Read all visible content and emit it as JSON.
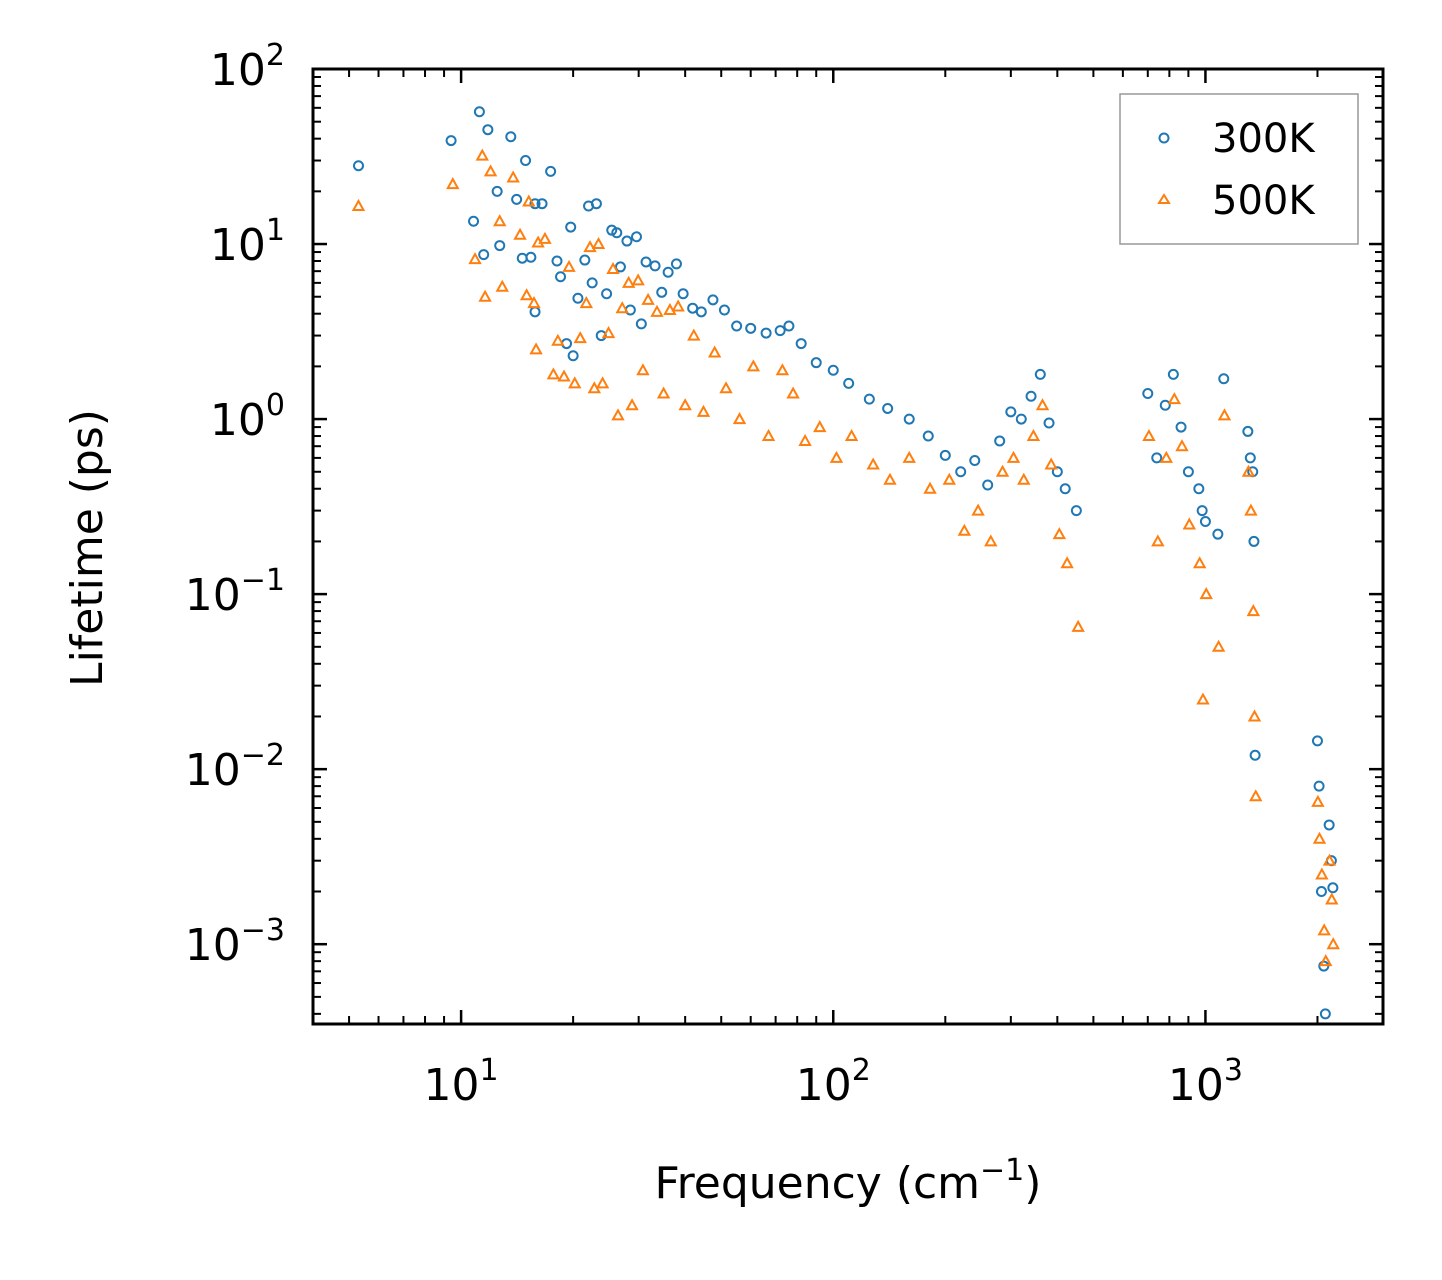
{
  "chart_data": {
    "type": "scatter",
    "title": "",
    "xlabel": "Frequency (cm",
    "xlabel_sup": "−1",
    "xlabel_suffix": ")",
    "ylabel": "Lifetime (ps)",
    "xscale": "log",
    "yscale": "log",
    "xlim": [
      4,
      3000
    ],
    "ylim": [
      0.00035,
      100
    ],
    "x_ticks": [
      {
        "value": 10,
        "base": "10",
        "exp": "1"
      },
      {
        "value": 100,
        "base": "10",
        "exp": "2"
      },
      {
        "value": 1000,
        "base": "10",
        "exp": "3"
      }
    ],
    "y_ticks": [
      {
        "value": 100,
        "base": "10",
        "exp": "2"
      },
      {
        "value": 10,
        "base": "10",
        "exp": "1"
      },
      {
        "value": 1,
        "base": "10",
        "exp": "0"
      },
      {
        "value": 0.1,
        "base": "10",
        "exp": "−1"
      },
      {
        "value": 0.01,
        "base": "10",
        "exp": "−2"
      },
      {
        "value": 0.001,
        "base": "10",
        "exp": "−3"
      }
    ],
    "legend_position": "top-right",
    "series": [
      {
        "name": "300K",
        "marker": "circle",
        "color": "#1f77b4",
        "points": [
          [
            5.3,
            28
          ],
          [
            9.4,
            39
          ],
          [
            10.8,
            13.5
          ],
          [
            11.2,
            57
          ],
          [
            11.5,
            8.7
          ],
          [
            11.8,
            45
          ],
          [
            12.5,
            20
          ],
          [
            12.7,
            9.8
          ],
          [
            13.6,
            41
          ],
          [
            14.1,
            18
          ],
          [
            14.6,
            8.3
          ],
          [
            14.9,
            30
          ],
          [
            15.4,
            8.4
          ],
          [
            15.8,
            4.1
          ],
          [
            15.8,
            17
          ],
          [
            16.5,
            17
          ],
          [
            17.4,
            26
          ],
          [
            18.1,
            8.0
          ],
          [
            18.5,
            6.5
          ],
          [
            19.2,
            2.7
          ],
          [
            19.7,
            12.5
          ],
          [
            20.0,
            2.3
          ],
          [
            20.6,
            4.9
          ],
          [
            21.5,
            8.1
          ],
          [
            22.0,
            16.5
          ],
          [
            22.5,
            6.0
          ],
          [
            23.1,
            17.0
          ],
          [
            23.8,
            3.0
          ],
          [
            24.6,
            5.2
          ],
          [
            25.4,
            12.0
          ],
          [
            26.2,
            11.6
          ],
          [
            26.8,
            7.4
          ],
          [
            27.9,
            10.4
          ],
          [
            28.5,
            4.2
          ],
          [
            29.6,
            11.0
          ],
          [
            30.5,
            3.5
          ],
          [
            31.4,
            7.9
          ],
          [
            33.2,
            7.5
          ],
          [
            34.6,
            5.3
          ],
          [
            36.0,
            6.9
          ],
          [
            37.9,
            7.7
          ],
          [
            39.5,
            5.2
          ],
          [
            41.9,
            4.3
          ],
          [
            44.2,
            4.1
          ],
          [
            47.5,
            4.8
          ],
          [
            51.0,
            4.2
          ],
          [
            55.0,
            3.4
          ],
          [
            60.0,
            3.3
          ],
          [
            66.0,
            3.1
          ],
          [
            72.0,
            3.2
          ],
          [
            76.0,
            3.4
          ],
          [
            82.0,
            2.7
          ],
          [
            90.0,
            2.1
          ],
          [
            100,
            1.9
          ],
          [
            110,
            1.6
          ],
          [
            125,
            1.3
          ],
          [
            140,
            1.15
          ],
          [
            160,
            1.0
          ],
          [
            180,
            0.8
          ],
          [
            200,
            0.62
          ],
          [
            220,
            0.5
          ],
          [
            240,
            0.58
          ],
          [
            260,
            0.42
          ],
          [
            280,
            0.75
          ],
          [
            300,
            1.1
          ],
          [
            320,
            1.0
          ],
          [
            340,
            1.35
          ],
          [
            360,
            1.8
          ],
          [
            380,
            0.95
          ],
          [
            400,
            0.5
          ],
          [
            420,
            0.4
          ],
          [
            450,
            0.3
          ],
          [
            700,
            1.4
          ],
          [
            740,
            0.6
          ],
          [
            780,
            1.2
          ],
          [
            820,
            1.8
          ],
          [
            860,
            0.9
          ],
          [
            900,
            0.5
          ],
          [
            960,
            0.4
          ],
          [
            980,
            0.3
          ],
          [
            1000,
            0.26
          ],
          [
            1080,
            0.22
          ],
          [
            1120,
            1.7
          ],
          [
            1300,
            0.85
          ],
          [
            1320,
            0.6
          ],
          [
            1340,
            0.5
          ],
          [
            1350,
            0.2
          ],
          [
            1360,
            0.012
          ],
          [
            2000,
            0.0145
          ],
          [
            2020,
            0.008
          ],
          [
            2050,
            0.002
          ],
          [
            2080,
            0.00075
          ],
          [
            2100,
            0.0004
          ],
          [
            2150,
            0.0048
          ],
          [
            2180,
            0.003
          ],
          [
            2200,
            0.0021
          ]
        ]
      },
      {
        "name": "500K",
        "marker": "triangle",
        "color": "#ff7f0e",
        "points": [
          [
            5.3,
            16.5
          ],
          [
            9.5,
            22
          ],
          [
            10.9,
            8.2
          ],
          [
            11.4,
            32
          ],
          [
            11.6,
            5.0
          ],
          [
            12.0,
            26
          ],
          [
            12.7,
            13.5
          ],
          [
            12.9,
            5.7
          ],
          [
            13.8,
            24
          ],
          [
            14.4,
            11.3
          ],
          [
            15.0,
            5.1
          ],
          [
            15.2,
            17.5
          ],
          [
            15.7,
            4.6
          ],
          [
            15.9,
            2.5
          ],
          [
            16.1,
            10.2
          ],
          [
            16.8,
            10.7
          ],
          [
            17.7,
            1.8
          ],
          [
            18.2,
            2.8
          ],
          [
            18.9,
            1.75
          ],
          [
            19.5,
            7.4
          ],
          [
            20.2,
            1.6
          ],
          [
            20.9,
            2.9
          ],
          [
            21.7,
            4.6
          ],
          [
            22.2,
            9.6
          ],
          [
            22.8,
            1.5
          ],
          [
            23.4,
            10.0
          ],
          [
            24.0,
            1.6
          ],
          [
            24.9,
            3.1
          ],
          [
            25.6,
            7.2
          ],
          [
            26.4,
            1.05
          ],
          [
            27.1,
            4.3
          ],
          [
            28.2,
            6.0
          ],
          [
            28.8,
            1.2
          ],
          [
            29.9,
            6.2
          ],
          [
            30.8,
            1.9
          ],
          [
            31.8,
            4.8
          ],
          [
            33.6,
            4.1
          ],
          [
            35.0,
            1.4
          ],
          [
            36.4,
            4.2
          ],
          [
            38.3,
            4.4
          ],
          [
            40.0,
            1.2
          ],
          [
            42.2,
            3.0
          ],
          [
            44.8,
            1.1
          ],
          [
            48.0,
            2.4
          ],
          [
            51.5,
            1.5
          ],
          [
            56.0,
            1.0
          ],
          [
            61.0,
            2.0
          ],
          [
            67.0,
            0.8
          ],
          [
            73.0,
            1.9
          ],
          [
            78.0,
            1.4
          ],
          [
            84.0,
            0.75
          ],
          [
            92.0,
            0.9
          ],
          [
            102,
            0.6
          ],
          [
            112,
            0.8
          ],
          [
            128,
            0.55
          ],
          [
            142,
            0.45
          ],
          [
            160,
            0.6
          ],
          [
            182,
            0.4
          ],
          [
            205,
            0.45
          ],
          [
            225,
            0.23
          ],
          [
            245,
            0.3
          ],
          [
            265,
            0.2
          ],
          [
            285,
            0.5
          ],
          [
            305,
            0.6
          ],
          [
            325,
            0.45
          ],
          [
            345,
            0.8
          ],
          [
            365,
            1.2
          ],
          [
            385,
            0.55
          ],
          [
            405,
            0.22
          ],
          [
            425,
            0.15
          ],
          [
            455,
            0.065
          ],
          [
            705,
            0.8
          ],
          [
            745,
            0.2
          ],
          [
            785,
            0.6
          ],
          [
            825,
            1.3
          ],
          [
            865,
            0.7
          ],
          [
            905,
            0.25
          ],
          [
            965,
            0.15
          ],
          [
            985,
            0.025
          ],
          [
            1005,
            0.1
          ],
          [
            1085,
            0.05
          ],
          [
            1125,
            1.05
          ],
          [
            1305,
            0.5
          ],
          [
            1325,
            0.3
          ],
          [
            1345,
            0.08
          ],
          [
            1355,
            0.02
          ],
          [
            1365,
            0.007
          ],
          [
            2005,
            0.0065
          ],
          [
            2025,
            0.004
          ],
          [
            2055,
            0.0025
          ],
          [
            2085,
            0.0012
          ],
          [
            2105,
            0.0008
          ],
          [
            2155,
            0.003
          ],
          [
            2185,
            0.0018
          ],
          [
            2205,
            0.001
          ]
        ]
      }
    ]
  }
}
